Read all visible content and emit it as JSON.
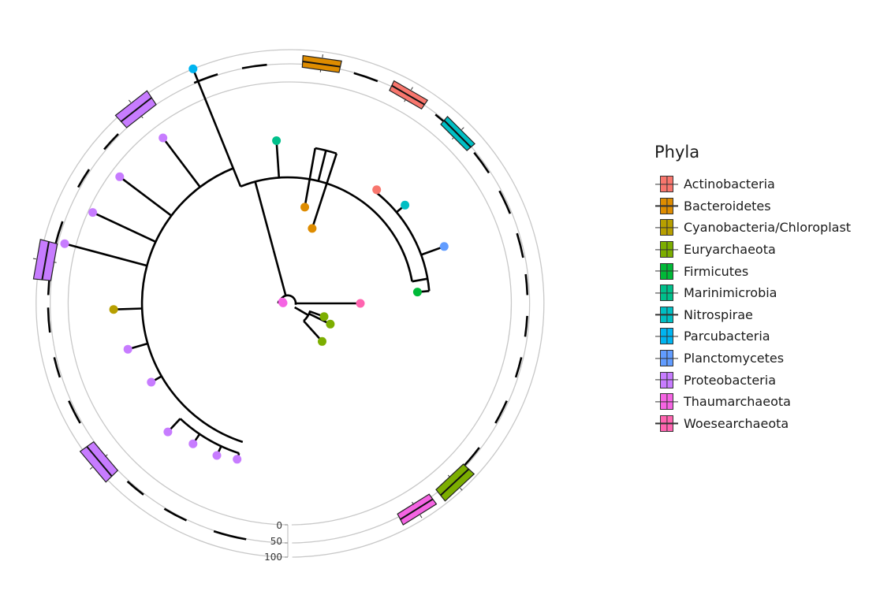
{
  "chart_data": {
    "type": "circular-phylogenetic-tree",
    "title": "",
    "radial_axis": {
      "ticks": [
        "0",
        "50",
        "100"
      ],
      "range": [
        0,
        100
      ]
    },
    "legend": {
      "title": "Phyla",
      "position": "right",
      "entries": [
        {
          "label": "Actinobacteria",
          "color": "#F8766D"
        },
        {
          "label": "Bacteroidetes",
          "color": "#DE8C00"
        },
        {
          "label": "Cyanobacteria/Chloroplast",
          "color": "#B79F00"
        },
        {
          "label": "Euryarchaeota",
          "color": "#7CAE00"
        },
        {
          "label": "Firmicutes",
          "color": "#00BA38"
        },
        {
          "label": "Marinimicrobia",
          "color": "#00C08B"
        },
        {
          "label": "Nitrospirae",
          "color": "#00BFC4"
        },
        {
          "label": "Parcubacteria",
          "color": "#00B4F0"
        },
        {
          "label": "Planctomycetes",
          "color": "#619CFF"
        },
        {
          "label": "Proteobacteria",
          "color": "#C77CFF"
        },
        {
          "label": "Thaumarchaeota",
          "color": "#F564E3"
        },
        {
          "label": "Woesearchaeota",
          "color": "#FF64B0"
        }
      ]
    },
    "tips": [
      {
        "phylum": "Woesearchaeota"
      },
      {
        "phylum": "Thaumarchaeota"
      },
      {
        "phylum": "Thaumarchaeota"
      },
      {
        "phylum": "Euryarchaeota"
      },
      {
        "phylum": "Euryarchaeota"
      },
      {
        "phylum": "Euryarchaeota"
      },
      {
        "phylum": "Firmicutes"
      },
      {
        "phylum": "Planctomycetes"
      },
      {
        "phylum": "Nitrospirae"
      },
      {
        "phylum": "Actinobacteria"
      },
      {
        "phylum": "Bacteroidetes"
      },
      {
        "phylum": "Bacteroidetes"
      },
      {
        "phylum": "Marinimicrobia"
      },
      {
        "phylum": "Parcubacteria"
      },
      {
        "phylum": "Proteobacteria"
      },
      {
        "phylum": "Proteobacteria"
      },
      {
        "phylum": "Proteobacteria"
      },
      {
        "phylum": "Proteobacteria"
      },
      {
        "phylum": "Cyanobacteria/Chloroplast"
      },
      {
        "phylum": "Proteobacteria"
      },
      {
        "phylum": "Proteobacteria"
      },
      {
        "phylum": "Proteobacteria"
      },
      {
        "phylum": "Proteobacteria"
      },
      {
        "phylum": "Proteobacteria"
      },
      {
        "phylum": "Proteobacteria"
      }
    ],
    "boxplots": [
      {
        "phylum": "Bacteroidetes",
        "q1": 12,
        "median": 20,
        "q3": 28,
        "min": 8,
        "max": 32
      },
      {
        "phylum": "Actinobacteria",
        "q1": 8,
        "median": 12,
        "q3": 16,
        "min": 6,
        "max": 18
      },
      {
        "phylum": "Nitrospirae",
        "q1": 4,
        "median": 7,
        "q3": 10,
        "min": 3,
        "max": 12
      },
      {
        "phylum": "Proteobacteria",
        "q1": 25,
        "median": 50,
        "q3": 75,
        "min": 20,
        "max": 80
      },
      {
        "phylum": "Proteobacteria",
        "q1": 22,
        "median": 50,
        "q3": 78,
        "min": 18,
        "max": 82
      },
      {
        "phylum": "Proteobacteria",
        "q1": 25,
        "median": 50,
        "q3": 75,
        "min": 20,
        "max": 80
      },
      {
        "phylum": "Thaumarchaeota",
        "q1": 18,
        "median": 28,
        "q3": 38,
        "min": 15,
        "max": 42
      },
      {
        "phylum": "Euryarchaeota",
        "q1": 22,
        "median": 40,
        "q3": 58,
        "min": 18,
        "max": 62
      }
    ]
  }
}
